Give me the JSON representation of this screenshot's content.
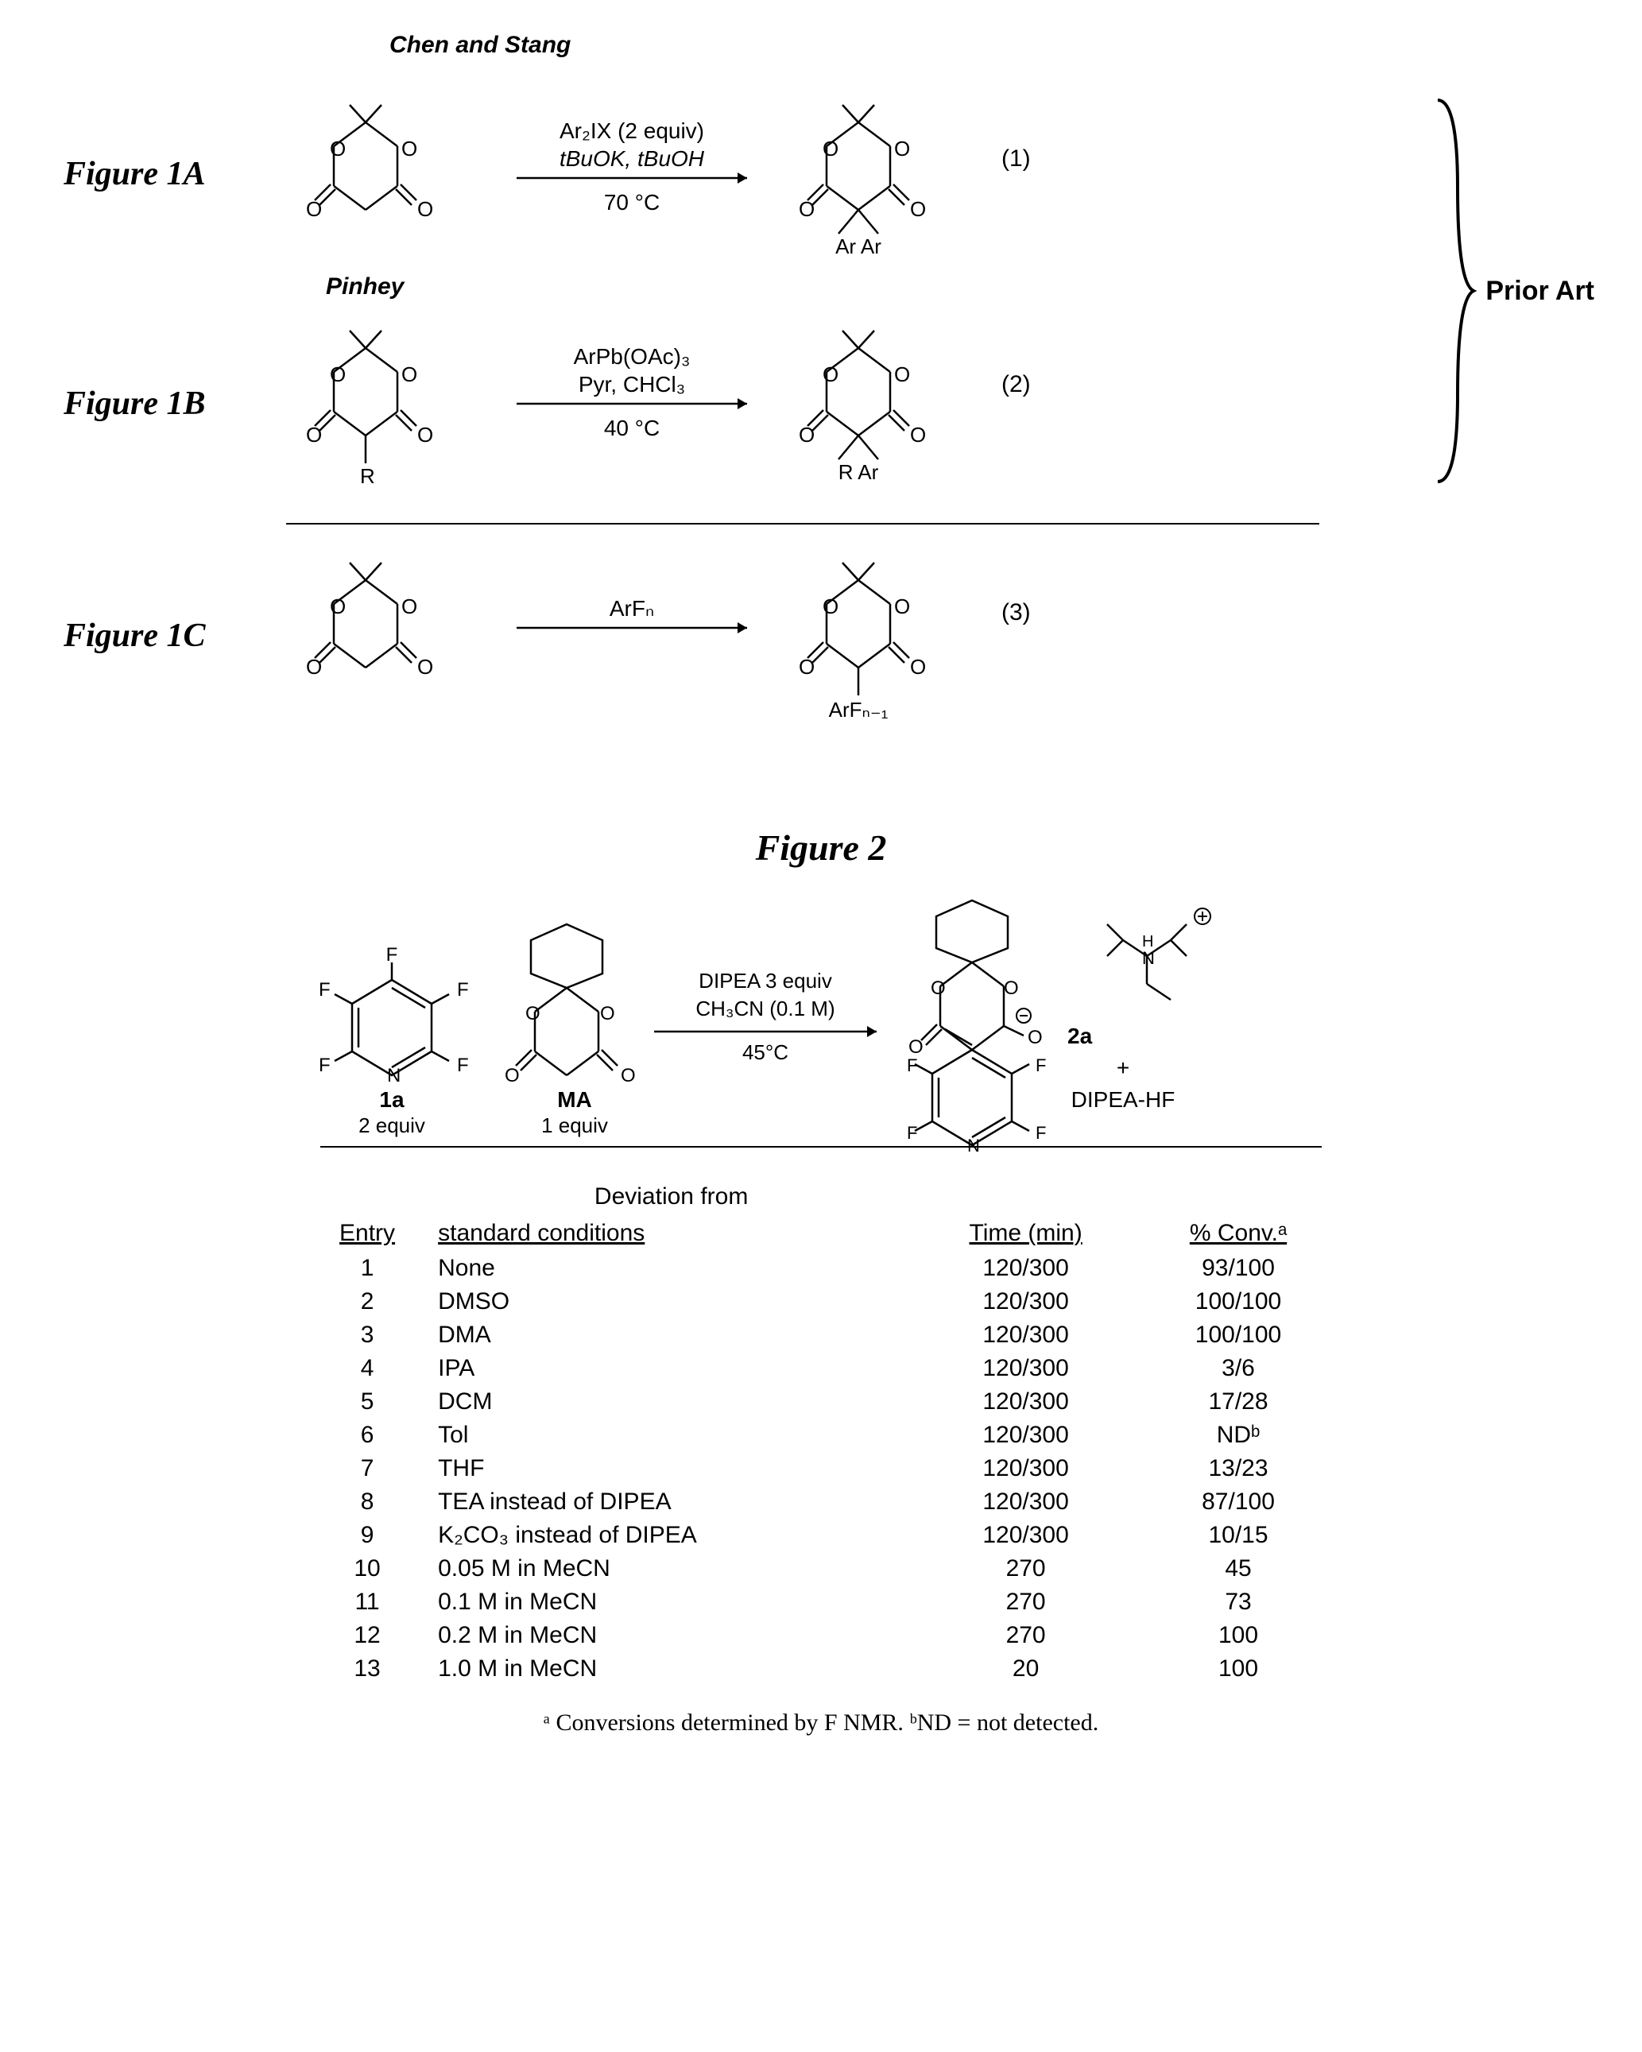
{
  "header": {
    "authors": "Chen and Stang"
  },
  "fig1a": {
    "label": "Figure 1A",
    "reagents_l1": "Ar₂IX (2 equiv)",
    "reagents_l2": "tBuOK, tBuOH",
    "conditions": "70 °C",
    "eq_num": "(1)",
    "product_sub": "Ar   Ar"
  },
  "pinhey": "Pinhey",
  "fig1b": {
    "label": "Figure 1B",
    "reagents_l1": "ArPb(OAc)₃",
    "reagents_l2": "Pyr, CHCl₃",
    "conditions": "40 °C",
    "eq_num": "(2)",
    "sm_sub": "R",
    "product_sub": "R   Ar"
  },
  "prior_art": "Prior Art",
  "fig1c": {
    "label": "Figure 1C",
    "reagents_l1": "ArFₙ",
    "eq_num": "(3)",
    "product_sub": "ArFₙ₋₁"
  },
  "fig2": {
    "title": "Figure 2",
    "sm1_label": "1a",
    "sm1_equiv": "2 equiv",
    "sm2_label": "MA",
    "sm2_equiv": "1 equiv",
    "reagents_l1": "DIPEA 3 equiv",
    "reagents_l2": "CH₃CN (0.1 M)",
    "conditions": "45°C",
    "prod_label": "2a",
    "byprod_plus": "+",
    "byprod": "DIPEA-HF",
    "table": {
      "header_sup": "Deviation from",
      "headers": [
        "Entry",
        "standard conditions",
        "Time (min)",
        "% Conv.ᵃ"
      ],
      "rows": [
        [
          "1",
          "None",
          "120/300",
          "93/100"
        ],
        [
          "2",
          "DMSO",
          "120/300",
          "100/100"
        ],
        [
          "3",
          "DMA",
          "120/300",
          "100/100"
        ],
        [
          "4",
          "IPA",
          "120/300",
          "3/6"
        ],
        [
          "5",
          "DCM",
          "120/300",
          "17/28"
        ],
        [
          "6",
          "Tol",
          "120/300",
          "NDᵇ"
        ],
        [
          "7",
          "THF",
          "120/300",
          "13/23"
        ],
        [
          "8",
          "TEA instead of DIPEA",
          "120/300",
          "87/100"
        ],
        [
          "9",
          "K₂CO₃ instead of DIPEA",
          "120/300",
          "10/15"
        ],
        [
          "10",
          "0.05 M in MeCN",
          "270",
          "45"
        ],
        [
          "11",
          "0.1 M in MeCN",
          "270",
          "73"
        ],
        [
          "12",
          "0.2 M in MeCN",
          "270",
          "100"
        ],
        [
          "13",
          "1.0 M in MeCN",
          "20",
          "100"
        ]
      ]
    },
    "footnote": "ᵃ Conversions determined by F NMR. ᵇND = not detected."
  },
  "colors": {
    "ink": "#000000",
    "bg": "#ffffff"
  }
}
